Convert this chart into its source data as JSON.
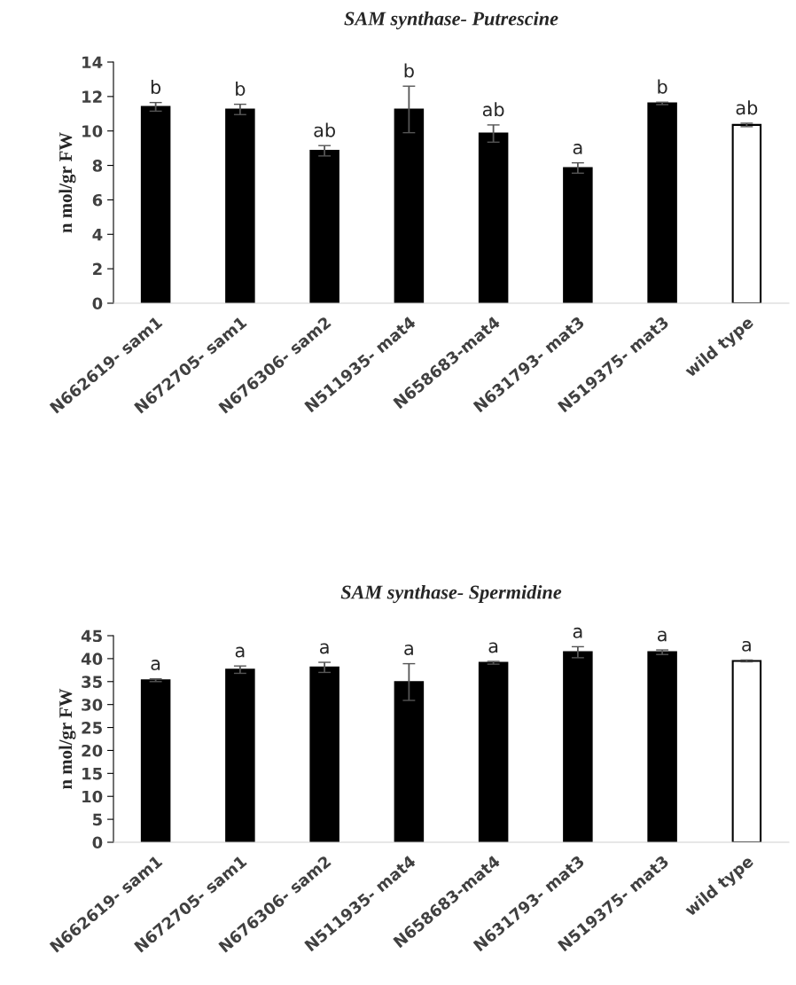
{
  "chart_data": [
    {
      "type": "bar",
      "title": "SAM synthase- Putrescine",
      "ylabel": "n mol/gr FW",
      "categories": [
        "N662619- sam1",
        "N672705- sam1",
        "N676306- sam2",
        "N511935- mat4",
        "N658683-mat4",
        "N631793- mat3",
        "N519375- mat3",
        "wild type"
      ],
      "values": [
        11.4,
        11.25,
        8.85,
        11.25,
        9.85,
        7.85,
        11.6,
        10.35
      ],
      "errors": [
        0.25,
        0.3,
        0.3,
        1.35,
        0.5,
        0.3,
        0.07,
        0.1
      ],
      "colors": [
        "#000000",
        "#000000",
        "#000000",
        "#000000",
        "#000000",
        "#000000",
        "#000000",
        "#ffffff"
      ],
      "value_labels": [
        "b",
        "b",
        "ab",
        "b",
        "ab",
        "a",
        "b",
        "ab"
      ],
      "ylim": [
        0,
        14
      ],
      "yticks": [
        0,
        2,
        4,
        6,
        8,
        10,
        12,
        14
      ],
      "grid": false,
      "legend": false
    },
    {
      "type": "bar",
      "title": "SAM synthase- Spermidine",
      "ylabel": "n mol/gr FW",
      "categories": [
        "N662619- sam1",
        "N672705- sam1",
        "N676306- sam2",
        "N511935- mat4",
        "N658683-mat4",
        "N631793- mat3",
        "N519375- mat3",
        "wild type"
      ],
      "values": [
        35.3,
        37.6,
        38.1,
        34.9,
        39.1,
        41.4,
        41.4,
        39.5
      ],
      "errors": [
        0.3,
        0.8,
        1.1,
        4,
        0.3,
        1.2,
        0.5,
        0.2
      ],
      "colors": [
        "#000000",
        "#000000",
        "#000000",
        "#000000",
        "#000000",
        "#000000",
        "#000000",
        "#ffffff"
      ],
      "value_labels": [
        "a",
        "a",
        "a",
        "a",
        "a",
        "a",
        "a",
        "a"
      ],
      "ylim": [
        0,
        45
      ],
      "yticks": [
        0,
        5,
        10,
        15,
        20,
        25,
        30,
        35,
        40,
        45
      ],
      "grid": false,
      "legend": false
    }
  ]
}
